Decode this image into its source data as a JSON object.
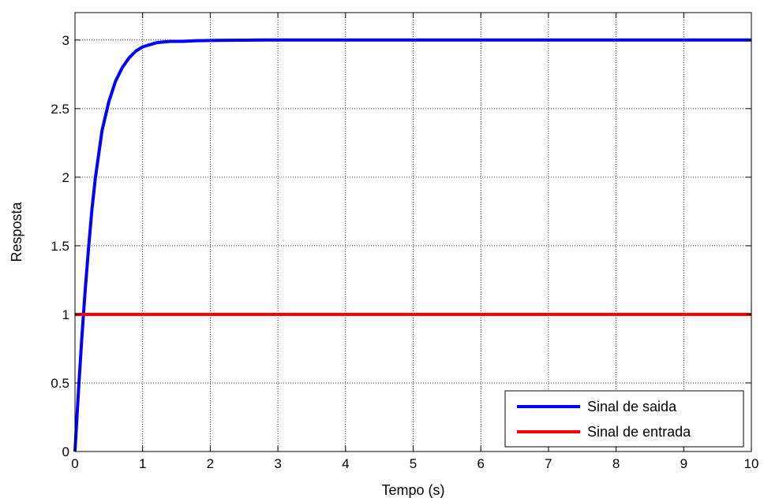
{
  "chart_data": {
    "type": "line",
    "title": "",
    "xlabel": "Tempo (s)",
    "ylabel": "Resposta",
    "xlim": [
      0,
      10
    ],
    "ylim": [
      0,
      3.2
    ],
    "xticks": [
      0,
      1,
      2,
      3,
      4,
      5,
      6,
      7,
      8,
      9,
      10
    ],
    "yticks": [
      0,
      0.5,
      1,
      1.5,
      2,
      2.5,
      3
    ],
    "xtick_labels": [
      "0",
      "1",
      "2",
      "3",
      "4",
      "5",
      "6",
      "7",
      "8",
      "9",
      "10"
    ],
    "ytick_labels": [
      "0",
      "0.5",
      "1",
      "1.5",
      "2",
      "2.5",
      "3"
    ],
    "grid": "on",
    "legend_placement": "bottom-right",
    "series": [
      {
        "name": "Sinal de saida",
        "color": "#0000ff",
        "x": [
          0,
          0.05,
          0.1,
          0.15,
          0.2,
          0.25,
          0.3,
          0.4,
          0.5,
          0.6,
          0.7,
          0.8,
          0.9,
          1.0,
          1.2,
          1.4,
          1.6,
          1.8,
          2.0,
          2.2,
          2.5,
          2.8,
          3.0,
          3.2,
          4.0,
          5.0,
          6.0,
          7.0,
          8.0,
          9.0,
          10.0
        ],
        "y": [
          0,
          0.43,
          0.82,
          1.17,
          1.48,
          1.76,
          1.99,
          2.34,
          2.55,
          2.7,
          2.8,
          2.87,
          2.92,
          2.95,
          2.98,
          2.99,
          2.99,
          2.995,
          2.997,
          2.998,
          2.999,
          3.0,
          3.0,
          3.0,
          3.0,
          3.0,
          3.0,
          3.0,
          3.0,
          3.0,
          3.0
        ]
      },
      {
        "name": "Sinal de entrada",
        "color": "#ff0000",
        "x": [
          0,
          10
        ],
        "y": [
          1,
          1
        ]
      }
    ]
  }
}
